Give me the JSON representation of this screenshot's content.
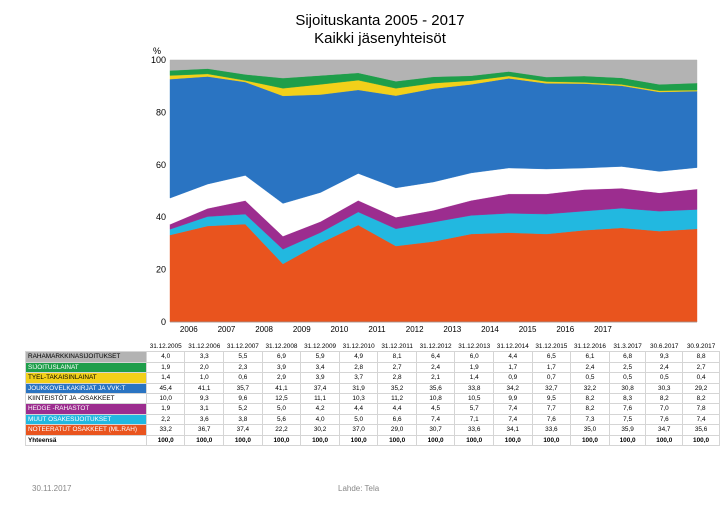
{
  "title": "Sijoituskanta 2005 - 2017",
  "subtitle": "Kaikki jäsenyhteisöt",
  "footer": {
    "date": "30.11.2017",
    "source": "Lahde: Tela"
  },
  "chart_data": {
    "type": "area",
    "stacked": true,
    "ylabel": "%",
    "ylim": [
      0,
      100
    ],
    "yticks": [
      0,
      20,
      40,
      60,
      80,
      100
    ],
    "year_labels": [
      "2006",
      "2007",
      "2008",
      "2009",
      "2010",
      "2011",
      "2012",
      "2013",
      "2014",
      "2015",
      "2016",
      "2017"
    ],
    "x": [
      "31.12.2005",
      "31.12.2006",
      "31.12.2007",
      "31.12.2008",
      "31.12.2009",
      "31.12.2010",
      "31.12.2011",
      "31.12.2012",
      "31.12.2013",
      "31.12.2014",
      "31.12.2015",
      "31.12.2016",
      "31.3.2017",
      "30.6.2017",
      "30.9.2017"
    ],
    "series": [
      {
        "name": "RAHAMARKKINASIJOITUKSET",
        "color": "#b3b3b3",
        "values": [
          4.0,
          3.3,
          5.5,
          6.9,
          5.9,
          4.9,
          8.1,
          6.4,
          6.0,
          4.4,
          6.5,
          6.1,
          6.8,
          9.3,
          8.8
        ]
      },
      {
        "name": "SIJOITUSLAINAT",
        "color": "#1e9e4a",
        "values": [
          1.9,
          2.0,
          2.3,
          3.9,
          3.4,
          2.8,
          2.7,
          2.4,
          1.9,
          1.7,
          1.7,
          2.4,
          2.5,
          2.4,
          2.7
        ]
      },
      {
        "name": "TYEL-TAKAISINLAINAT",
        "color": "#f2d01a",
        "values": [
          1.4,
          1.0,
          0.6,
          2.9,
          3.9,
          3.7,
          2.8,
          2.1,
          1.4,
          0.9,
          0.7,
          0.5,
          0.5,
          0.5,
          0.4
        ]
      },
      {
        "name": "JOUKKOVELKAKIRJAT JA VVK:T",
        "color": "#2a74c2",
        "values": [
          45.4,
          41.1,
          35.7,
          41.1,
          37.4,
          31.9,
          35.2,
          35.6,
          33.8,
          34.2,
          32.7,
          32.2,
          30.8,
          30.3,
          29.2
        ]
      },
      {
        "name": "KIINTEISTÖT JA -OSAKKEET",
        "color": "#ffffff",
        "values": [
          10.0,
          9.3,
          9.6,
          12.5,
          11.1,
          10.3,
          11.2,
          10.8,
          10.5,
          9.9,
          9.5,
          8.2,
          8.3,
          8.2,
          8.2
        ]
      },
      {
        "name": "HEDGE -RAHASTOT",
        "color": "#9c2d8f",
        "values": [
          1.9,
          3.1,
          5.2,
          5.0,
          4.2,
          4.4,
          4.4,
          4.5,
          5.7,
          7.4,
          7.7,
          8.2,
          7.6,
          7.0,
          7.8
        ]
      },
      {
        "name": "MUUT OSAKESIJOITUKSET",
        "color": "#22b8e0",
        "values": [
          2.2,
          3.6,
          3.8,
          5.6,
          4.0,
          5.0,
          6.6,
          7.4,
          7.1,
          7.4,
          7.6,
          7.3,
          7.5,
          7.6,
          7.4
        ]
      },
      {
        "name": "NOTEERATUT OSAKKEET (ML.RAH)",
        "color": "#e9541e",
        "values": [
          33.2,
          36.7,
          37.4,
          22.2,
          30.2,
          37.0,
          29.0,
          30.7,
          33.6,
          34.1,
          33.6,
          35.0,
          35.9,
          34.7,
          35.6
        ]
      }
    ],
    "total_label": "Yhteensä",
    "totals": [
      "100,0",
      "100,0",
      "100,0",
      "100,0",
      "100,0",
      "100,0",
      "100,0",
      "100,0",
      "100,0",
      "100,0",
      "100,0",
      "100,0",
      "100,0",
      "100,0",
      "100,0"
    ]
  }
}
